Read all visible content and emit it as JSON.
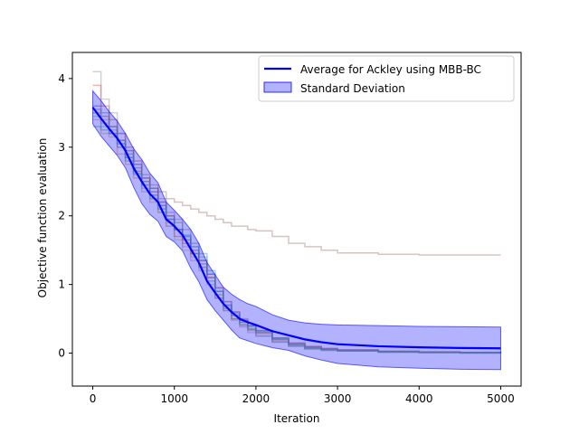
{
  "chart_data": {
    "type": "line",
    "title": "",
    "xlabel": "Iteration",
    "ylabel": "Objective function evaluation",
    "xlim": [
      -250,
      5250
    ],
    "ylim": [
      -0.48,
      4.38
    ],
    "xticks": [
      0,
      1000,
      2000,
      3000,
      4000,
      5000
    ],
    "yticks": [
      0,
      1,
      2,
      3,
      4
    ],
    "grid": false,
    "legend_position": "top-right",
    "series": [
      {
        "name": "Average for Ackley using MBB-BC",
        "color": "#0000ff",
        "x": [
          0,
          100,
          200,
          300,
          400,
          500,
          600,
          700,
          800,
          900,
          1000,
          1100,
          1200,
          1300,
          1400,
          1500,
          1600,
          1700,
          1800,
          1900,
          2000,
          2200,
          2400,
          2600,
          2800,
          3000,
          3500,
          4000,
          4500,
          5000
        ],
        "values": [
          3.58,
          3.42,
          3.27,
          3.13,
          2.95,
          2.7,
          2.5,
          2.32,
          2.2,
          1.95,
          1.85,
          1.72,
          1.52,
          1.32,
          1.05,
          0.88,
          0.72,
          0.6,
          0.5,
          0.45,
          0.41,
          0.32,
          0.26,
          0.2,
          0.16,
          0.13,
          0.1,
          0.085,
          0.075,
          0.07
        ]
      },
      {
        "name": "Standard Deviation",
        "color": "#0000ff",
        "type": "band",
        "x": [
          0,
          100,
          200,
          300,
          400,
          500,
          600,
          700,
          800,
          900,
          1000,
          1100,
          1200,
          1300,
          1400,
          1500,
          1600,
          1700,
          1800,
          1900,
          2000,
          2200,
          2400,
          2600,
          2800,
          3000,
          3500,
          4000,
          4500,
          5000
        ],
        "upper": [
          3.82,
          3.68,
          3.52,
          3.38,
          3.2,
          2.98,
          2.82,
          2.62,
          2.48,
          2.2,
          2.08,
          1.95,
          1.8,
          1.6,
          1.32,
          1.14,
          0.96,
          0.86,
          0.78,
          0.72,
          0.68,
          0.56,
          0.48,
          0.44,
          0.42,
          0.41,
          0.4,
          0.39,
          0.385,
          0.38
        ],
        "lower": [
          3.34,
          3.16,
          3.02,
          2.88,
          2.7,
          2.42,
          2.18,
          2.02,
          1.92,
          1.7,
          1.62,
          1.49,
          1.24,
          1.04,
          0.78,
          0.62,
          0.48,
          0.34,
          0.22,
          0.18,
          0.14,
          0.08,
          0.04,
          -0.04,
          -0.1,
          -0.15,
          -0.2,
          -0.22,
          -0.235,
          -0.24
        ]
      }
    ],
    "runs": [
      {
        "color": "#1f77b4",
        "x": [
          0,
          100,
          200,
          300,
          400,
          500,
          600,
          700,
          800,
          900,
          1000,
          1100,
          1200,
          1300,
          1400,
          1500,
          1600,
          1700,
          1800,
          1900,
          2000,
          2200,
          2400,
          2600,
          2800,
          3000,
          3500,
          4000,
          4500,
          5000
        ],
        "values": [
          3.6,
          3.5,
          3.3,
          3.1,
          2.9,
          2.7,
          2.45,
          2.3,
          2.15,
          1.95,
          1.8,
          1.72,
          1.6,
          1.45,
          1.2,
          0.9,
          0.7,
          0.55,
          0.45,
          0.35,
          0.3,
          0.2,
          0.12,
          0.08,
          0.05,
          0.04,
          0.02,
          0.01,
          0.01,
          0.0
        ]
      },
      {
        "color": "#ff7f0e",
        "x": [
          0,
          100,
          200,
          300,
          400,
          500,
          600,
          700,
          800,
          900,
          1000,
          1100,
          1200,
          1300,
          1400,
          1500,
          1600,
          1700,
          1800,
          1900,
          2000,
          2200,
          2400,
          2600,
          2800,
          3000,
          3500,
          4000,
          4500,
          5000
        ],
        "values": [
          3.4,
          3.2,
          3.15,
          2.9,
          2.75,
          2.55,
          2.35,
          2.2,
          2.05,
          1.85,
          1.7,
          1.65,
          1.5,
          1.35,
          1.1,
          0.85,
          0.65,
          0.5,
          0.42,
          0.35,
          0.28,
          0.18,
          0.12,
          0.08,
          0.06,
          0.04,
          0.02,
          0.01,
          0.005,
          0.0
        ]
      },
      {
        "color": "#2ca02c",
        "x": [
          0,
          100,
          200,
          300,
          400,
          500,
          600,
          700,
          800,
          900,
          1000,
          1100,
          1200,
          1300,
          1400,
          1500,
          1600,
          1700,
          1800,
          1900,
          2000,
          2200,
          2400,
          2600,
          2800,
          3000,
          3500,
          4000,
          4500,
          5000
        ],
        "values": [
          3.3,
          3.25,
          3.2,
          3.0,
          2.8,
          2.62,
          2.55,
          2.4,
          2.2,
          2.0,
          1.9,
          1.7,
          1.45,
          1.25,
          1.05,
          0.8,
          0.62,
          0.5,
          0.4,
          0.33,
          0.25,
          0.16,
          0.1,
          0.06,
          0.04,
          0.03,
          0.01,
          0.005,
          0.0,
          0.0
        ]
      },
      {
        "color": "#d62728",
        "x": [
          0,
          100,
          200,
          300,
          400,
          500,
          600,
          700,
          800,
          900,
          1000,
          1100,
          1200,
          1300,
          1400,
          1500,
          1600,
          1700,
          1800,
          1900,
          2000,
          2200,
          2400,
          2600,
          2800,
          3000,
          3500,
          4000,
          4500,
          5000
        ],
        "values": [
          3.9,
          3.6,
          3.4,
          3.2,
          3.0,
          2.8,
          2.55,
          2.4,
          2.2,
          2.0,
          1.8,
          1.6,
          1.45,
          1.3,
          1.1,
          0.95,
          0.75,
          0.6,
          0.5,
          0.4,
          0.32,
          0.22,
          0.15,
          0.1,
          0.07,
          0.05,
          0.03,
          0.02,
          0.01,
          0.0
        ]
      },
      {
        "color": "#9467bd",
        "x": [
          0,
          100,
          200,
          300,
          400,
          500,
          600,
          700,
          800,
          900,
          1000,
          1100,
          1200,
          1300,
          1400,
          1500,
          1600,
          1700,
          1800,
          1900,
          2000,
          2200,
          2400,
          2600,
          2800,
          3000,
          3500,
          4000,
          4500,
          5000
        ],
        "values": [
          3.5,
          3.4,
          3.25,
          3.05,
          2.85,
          2.65,
          2.5,
          2.35,
          2.25,
          2.05,
          1.95,
          1.8,
          1.55,
          1.35,
          1.15,
          0.95,
          0.75,
          0.6,
          0.48,
          0.4,
          0.33,
          0.22,
          0.14,
          0.09,
          0.06,
          0.04,
          0.02,
          0.01,
          0.005,
          0.0
        ]
      },
      {
        "color": "#8c564b",
        "x": [
          0,
          100,
          200,
          300,
          400,
          500,
          600,
          700,
          800,
          900,
          1000,
          1100,
          1200,
          1300,
          1400,
          1500,
          1600,
          1700,
          1800,
          1900,
          2000,
          2200,
          2400,
          2600,
          2800,
          3000,
          3500,
          4000,
          4500,
          5000
        ],
        "values": [
          3.55,
          3.45,
          3.3,
          3.1,
          2.95,
          2.75,
          2.6,
          2.45,
          2.35,
          2.25,
          2.2,
          2.15,
          2.1,
          2.05,
          2.0,
          1.95,
          1.9,
          1.85,
          1.85,
          1.8,
          1.78,
          1.7,
          1.6,
          1.55,
          1.5,
          1.46,
          1.44,
          1.43,
          1.43,
          1.43
        ]
      },
      {
        "color": "#e377c2",
        "x": [
          0,
          100,
          200,
          300,
          400,
          500,
          600,
          700,
          800,
          900,
          1000,
          1100,
          1200,
          1300,
          1400,
          1500,
          1600,
          1700,
          1800,
          1900,
          2000,
          2200,
          2400,
          2600,
          2800,
          3000,
          3500,
          4000,
          4500,
          5000
        ],
        "values": [
          3.6,
          3.35,
          3.2,
          3.0,
          2.85,
          2.65,
          2.45,
          2.3,
          2.1,
          1.9,
          1.7,
          1.55,
          1.35,
          1.2,
          1.0,
          0.8,
          0.62,
          0.48,
          0.38,
          0.3,
          0.25,
          0.16,
          0.1,
          0.06,
          0.04,
          0.03,
          0.02,
          0.01,
          0.005,
          0.0
        ]
      },
      {
        "color": "#7f7f7f",
        "x": [
          0,
          100,
          200,
          300,
          400,
          500,
          600,
          700,
          800,
          900,
          1000,
          1100,
          1200,
          1300,
          1400,
          1500,
          1600,
          1700,
          1800,
          1900,
          2000,
          2200,
          2400,
          2600,
          2800,
          3000,
          3500,
          4000,
          4500,
          5000
        ],
        "values": [
          4.1,
          3.7,
          3.5,
          3.2,
          2.95,
          2.75,
          2.5,
          2.35,
          2.15,
          1.95,
          1.8,
          1.65,
          1.5,
          1.35,
          1.15,
          0.9,
          0.7,
          0.58,
          0.48,
          0.4,
          0.33,
          0.22,
          0.14,
          0.09,
          0.06,
          0.04,
          0.02,
          0.015,
          0.01,
          0.0
        ]
      },
      {
        "color": "#bcbd22",
        "x": [
          0,
          100,
          200,
          300,
          400,
          500,
          600,
          700,
          800,
          900,
          1000,
          1100,
          1200,
          1300,
          1400,
          1500,
          1600,
          1700,
          1800,
          1900,
          2000,
          2200,
          2400,
          2600,
          2800,
          3000,
          3500,
          4000,
          4500,
          5000
        ],
        "values": [
          3.5,
          3.45,
          3.3,
          3.1,
          2.9,
          2.7,
          2.5,
          2.25,
          2.05,
          1.85,
          1.65,
          1.5,
          1.4,
          1.25,
          1.1,
          0.85,
          0.65,
          0.5,
          0.42,
          0.35,
          0.3,
          0.2,
          0.12,
          0.08,
          0.05,
          0.03,
          0.02,
          0.01,
          0.005,
          0.0
        ]
      },
      {
        "color": "#17becf",
        "x": [
          0,
          100,
          200,
          300,
          400,
          500,
          600,
          700,
          800,
          900,
          1000,
          1100,
          1200,
          1300,
          1400,
          1500,
          1600,
          1700,
          1800,
          1900,
          2000,
          2200,
          2400,
          2600,
          2800,
          3000,
          3500,
          4000,
          4500,
          5000
        ],
        "values": [
          3.45,
          3.3,
          3.2,
          3.05,
          2.85,
          2.6,
          2.4,
          2.25,
          2.1,
          1.95,
          1.8,
          1.7,
          1.55,
          1.4,
          1.15,
          0.9,
          0.68,
          0.55,
          0.45,
          0.38,
          0.3,
          0.2,
          0.12,
          0.07,
          0.05,
          0.03,
          0.02,
          0.01,
          0.005,
          0.0
        ]
      }
    ]
  }
}
